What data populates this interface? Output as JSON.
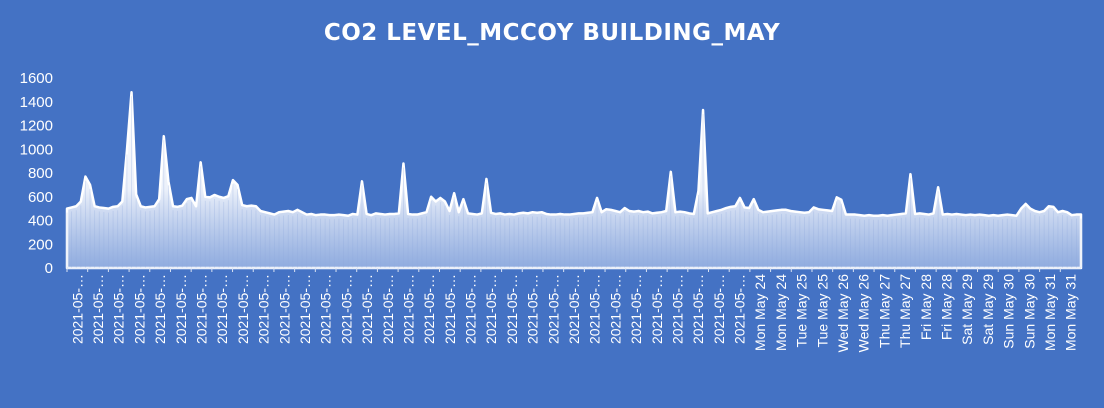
{
  "chart_data": {
    "type": "area",
    "title": "CO2 LEVEL_MCCOY BUILDING_MAY",
    "xlabel": "",
    "ylabel": "",
    "ylim": [
      0,
      1600
    ],
    "yticks": [
      0,
      200,
      400,
      600,
      800,
      1000,
      1200,
      1400,
      1600
    ],
    "x_tick_labels": [
      "2021-05-…",
      "2021-05-…",
      "2021-05-…",
      "2021-05-…",
      "2021-05-…",
      "2021-05-…",
      "2021-05-…",
      "2021-05-…",
      "2021-05-…",
      "2021-05-…",
      "2021-05-…",
      "2021-05-…",
      "2021-05-…",
      "2021-05-…",
      "2021-05-…",
      "2021-05-…",
      "2021-05-…",
      "2021-05-…",
      "2021-05-…",
      "2021-05-…",
      "2021-05-…",
      "2021-05-…",
      "2021-05-…",
      "2021-05-…",
      "2021-05-…",
      "2021-05-…",
      "2021-05-…",
      "2021-05-…",
      "2021-05-…",
      "2021-05-…",
      "2021-05-…",
      "2021-05-…",
      "2021-05-…",
      "Mon May 24",
      "Mon May 24",
      "Tue May 25",
      "Tue May 25",
      "Wed May 26",
      "Wed May 26",
      "Thu May 27",
      "Thu May 27",
      "Fri May 28",
      "Fri May 28",
      "Sat May 29",
      "Sat May 29",
      "Sun May 30",
      "Sun May 30",
      "Mon May 31",
      "Mon May 31"
    ],
    "grid": false,
    "legend": "none",
    "series": [
      {
        "color": "#FFFFFF",
        "values": [
          500,
          510,
          520,
          560,
          770,
          700,
          520,
          510,
          505,
          500,
          515,
          520,
          560,
          990,
          1480,
          620,
          520,
          510,
          515,
          520,
          580,
          1110,
          730,
          520,
          515,
          525,
          580,
          590,
          520,
          890,
          600,
          595,
          615,
          600,
          590,
          605,
          740,
          700,
          530,
          520,
          525,
          520,
          480,
          470,
          460,
          450,
          470,
          475,
          480,
          470,
          490,
          470,
          450,
          455,
          445,
          450,
          450,
          445,
          445,
          450,
          445,
          440,
          455,
          450,
          730,
          455,
          445,
          460,
          455,
          450,
          455,
          455,
          460,
          880,
          455,
          450,
          450,
          460,
          470,
          600,
          560,
          590,
          560,
          480,
          630,
          470,
          580,
          460,
          455,
          450,
          460,
          750,
          465,
          455,
          460,
          450,
          455,
          450,
          460,
          465,
          460,
          470,
          465,
          470,
          455,
          450,
          450,
          455,
          450,
          450,
          455,
          460,
          460,
          465,
          470,
          590,
          470,
          495,
          490,
          480,
          470,
          505,
          480,
          475,
          480,
          470,
          475,
          460,
          465,
          470,
          480,
          810,
          470,
          475,
          470,
          460,
          455,
          650,
          1330,
          460,
          470,
          480,
          490,
          505,
          515,
          520,
          590,
          510,
          505,
          580,
          490,
          470,
          475,
          480,
          485,
          490,
          490,
          480,
          475,
          470,
          465,
          470,
          510,
          495,
          490,
          485,
          480,
          595,
          575,
          450,
          450,
          450,
          445,
          440,
          445,
          440,
          440,
          445,
          440,
          445,
          450,
          455,
          460,
          790,
          455,
          460,
          455,
          450,
          460,
          680,
          450,
          455,
          450,
          455,
          450,
          445,
          450,
          445,
          450,
          445,
          440,
          445,
          440,
          445,
          450,
          445,
          440,
          500,
          540,
          500,
          480,
          470,
          480,
          520,
          515,
          470,
          480,
          470,
          445,
          450,
          450
        ]
      }
    ]
  }
}
